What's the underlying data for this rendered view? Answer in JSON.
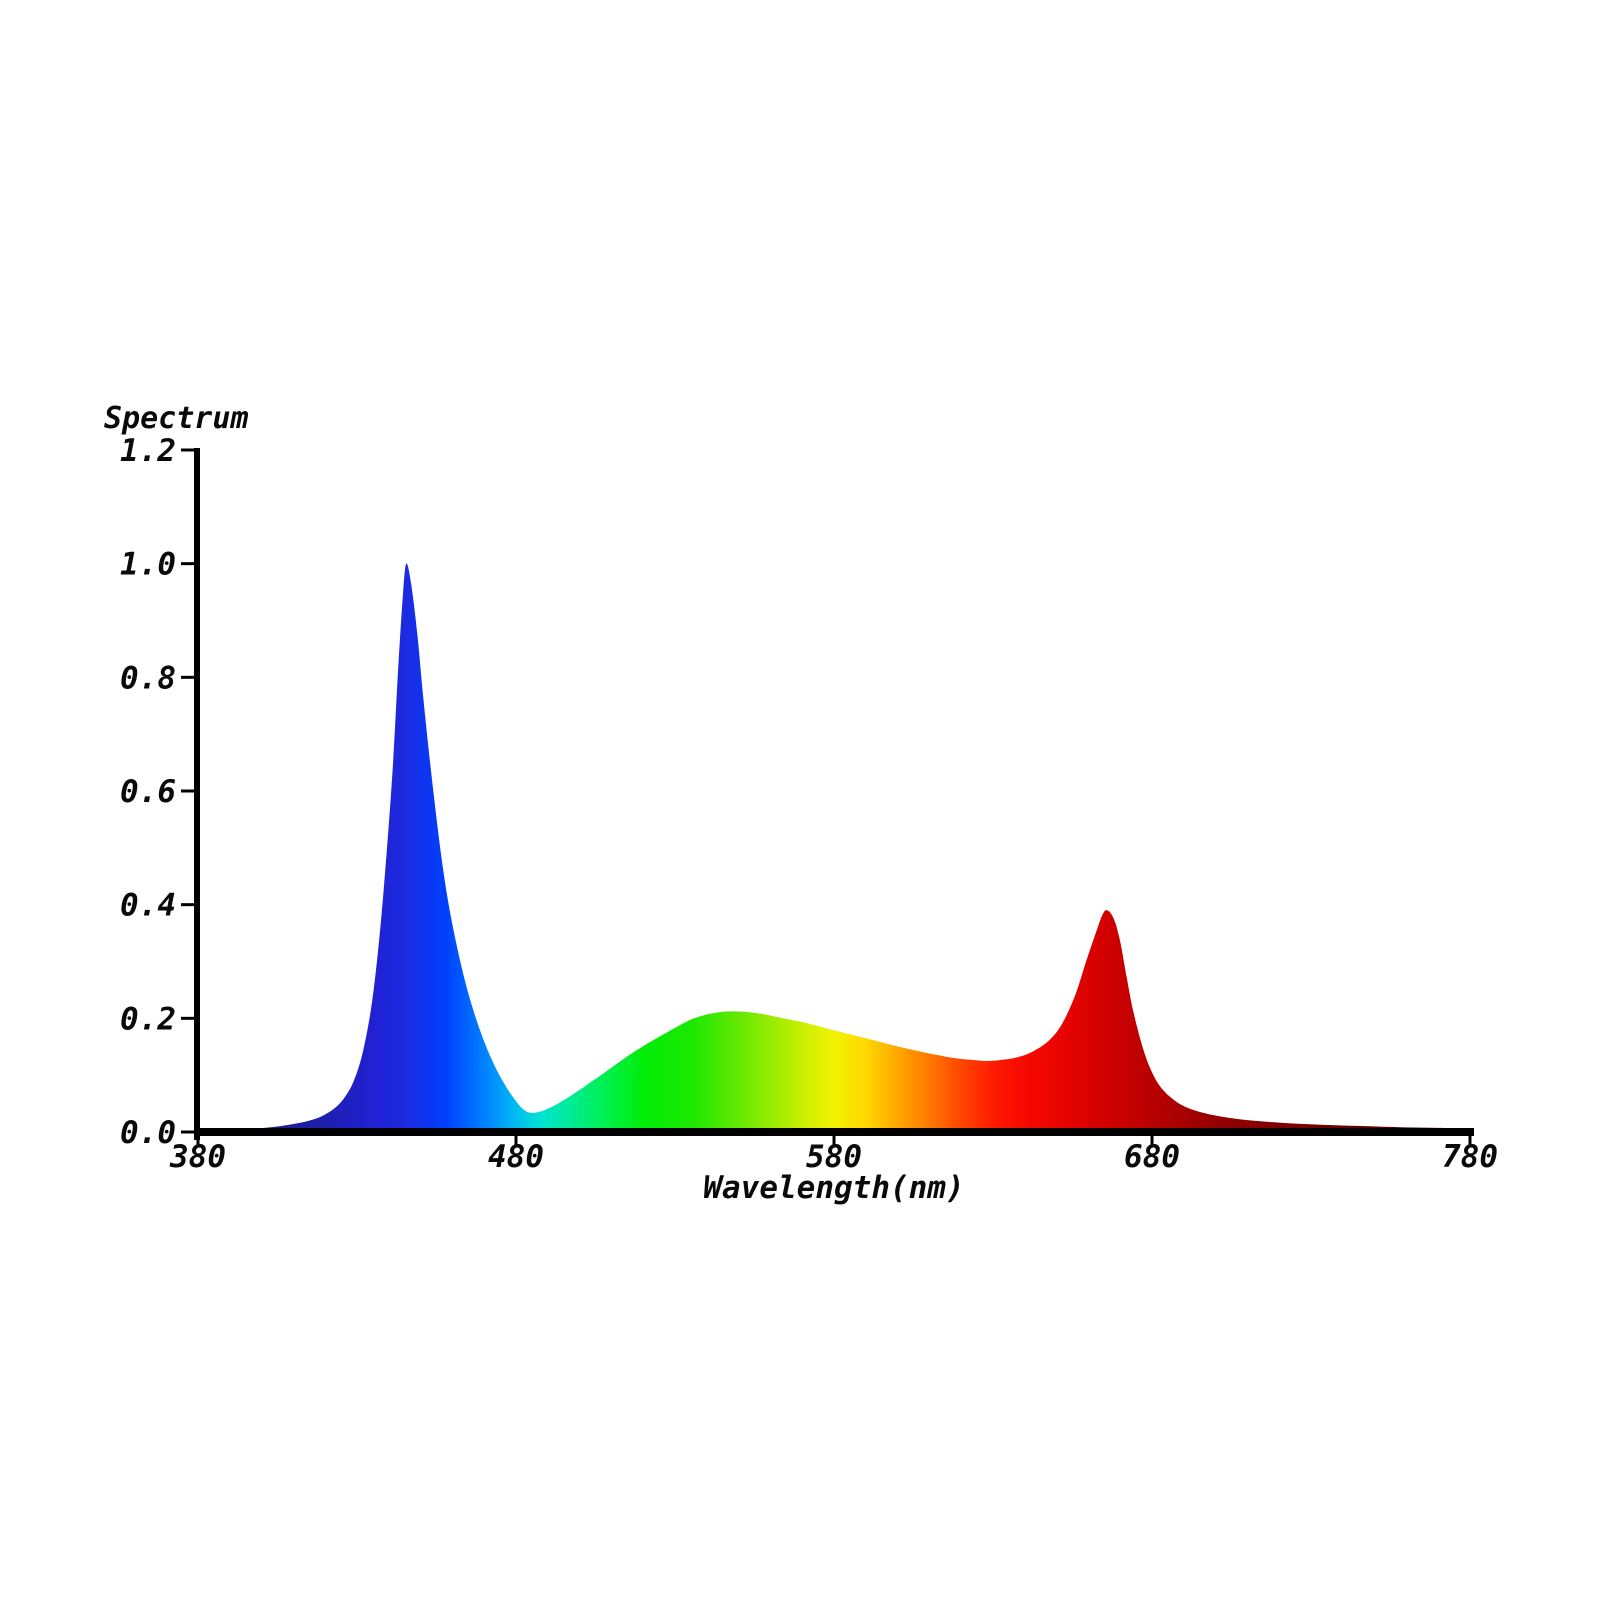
{
  "page": {
    "background": "#ffffff"
  },
  "chart_data": {
    "type": "area",
    "title": "Spectrum",
    "xlabel": "Wavelength(nm)",
    "ylabel": "",
    "xlim": [
      380,
      780
    ],
    "ylim": [
      0,
      1.2
    ],
    "grid": false,
    "legend": null,
    "axis_color": "#000000",
    "text_color": "#0a0a0a",
    "x_ticks": [
      380,
      480,
      580,
      680,
      780
    ],
    "x_tick_labels": [
      "380",
      "480",
      "580",
      "680",
      "780"
    ],
    "y_ticks": [
      0.0,
      0.2,
      0.4,
      0.6,
      0.8,
      1.0,
      1.2
    ],
    "y_tick_labels": [
      "0.0",
      "0.2",
      "0.4",
      "0.6",
      "0.8",
      "1.0",
      "1.2"
    ],
    "series": [
      {
        "name": "spectrum",
        "fill": "wavelength-gradient",
        "points": [
          [
            380,
            0.0
          ],
          [
            388,
            0.002
          ],
          [
            396,
            0.005
          ],
          [
            404,
            0.009
          ],
          [
            410,
            0.014
          ],
          [
            415,
            0.02
          ],
          [
            419,
            0.028
          ],
          [
            423,
            0.042
          ],
          [
            426,
            0.06
          ],
          [
            429,
            0.09
          ],
          [
            432,
            0.145
          ],
          [
            435,
            0.24
          ],
          [
            438,
            0.4
          ],
          [
            441,
            0.62
          ],
          [
            443,
            0.82
          ],
          [
            444.5,
            0.95
          ],
          [
            445.5,
            1.0
          ],
          [
            447,
            0.965
          ],
          [
            449,
            0.875
          ],
          [
            451,
            0.755
          ],
          [
            454,
            0.6
          ],
          [
            457,
            0.465
          ],
          [
            460,
            0.365
          ],
          [
            464,
            0.265
          ],
          [
            468,
            0.19
          ],
          [
            472,
            0.132
          ],
          [
            476,
            0.088
          ],
          [
            480,
            0.054
          ],
          [
            483,
            0.037
          ],
          [
            486,
            0.034
          ],
          [
            490,
            0.041
          ],
          [
            495,
            0.056
          ],
          [
            501,
            0.078
          ],
          [
            508,
            0.105
          ],
          [
            515,
            0.133
          ],
          [
            522,
            0.158
          ],
          [
            529,
            0.18
          ],
          [
            536,
            0.2
          ],
          [
            543,
            0.21
          ],
          [
            550,
            0.212
          ],
          [
            557,
            0.208
          ],
          [
            564,
            0.2
          ],
          [
            571,
            0.192
          ],
          [
            578,
            0.182
          ],
          [
            585,
            0.172
          ],
          [
            592,
            0.162
          ],
          [
            599,
            0.152
          ],
          [
            606,
            0.143
          ],
          [
            612,
            0.136
          ],
          [
            618,
            0.13
          ],
          [
            623,
            0.127
          ],
          [
            628,
            0.125
          ],
          [
            633,
            0.127
          ],
          [
            638,
            0.132
          ],
          [
            643,
            0.143
          ],
          [
            648,
            0.163
          ],
          [
            652,
            0.193
          ],
          [
            656,
            0.243
          ],
          [
            659,
            0.295
          ],
          [
            662,
            0.345
          ],
          [
            664.5,
            0.383
          ],
          [
            666,
            0.39
          ],
          [
            668,
            0.375
          ],
          [
            670,
            0.335
          ],
          [
            672,
            0.273
          ],
          [
            674,
            0.215
          ],
          [
            677,
            0.15
          ],
          [
            680,
            0.105
          ],
          [
            683,
            0.077
          ],
          [
            687,
            0.056
          ],
          [
            691,
            0.043
          ],
          [
            696,
            0.034
          ],
          [
            702,
            0.027
          ],
          [
            710,
            0.021
          ],
          [
            720,
            0.0165
          ],
          [
            732,
            0.013
          ],
          [
            746,
            0.0105
          ],
          [
            762,
            0.008
          ],
          [
            780,
            0.0065
          ]
        ]
      }
    ],
    "color_stops": [
      [
        380,
        "#191966"
      ],
      [
        400,
        "#1b1b85"
      ],
      [
        420,
        "#1f1fb0"
      ],
      [
        435,
        "#2121d2"
      ],
      [
        445,
        "#1c2ae0"
      ],
      [
        458,
        "#0040ff"
      ],
      [
        470,
        "#0080ff"
      ],
      [
        480,
        "#00bcf2"
      ],
      [
        488,
        "#00e2d2"
      ],
      [
        497,
        "#00ec96"
      ],
      [
        507,
        "#00f055"
      ],
      [
        520,
        "#00ee08"
      ],
      [
        535,
        "#1ce800"
      ],
      [
        548,
        "#5ae800"
      ],
      [
        560,
        "#96ec00"
      ],
      [
        572,
        "#d2f000"
      ],
      [
        580,
        "#f2f200"
      ],
      [
        590,
        "#ffd800"
      ],
      [
        600,
        "#ffa800"
      ],
      [
        610,
        "#ff7800"
      ],
      [
        620,
        "#ff4600"
      ],
      [
        630,
        "#ff1c00"
      ],
      [
        640,
        "#f70800"
      ],
      [
        652,
        "#e80400"
      ],
      [
        665,
        "#d20000"
      ],
      [
        680,
        "#b80000"
      ],
      [
        700,
        "#960000"
      ],
      [
        720,
        "#7d0000"
      ],
      [
        745,
        "#640000"
      ],
      [
        780,
        "#500000"
      ]
    ]
  }
}
